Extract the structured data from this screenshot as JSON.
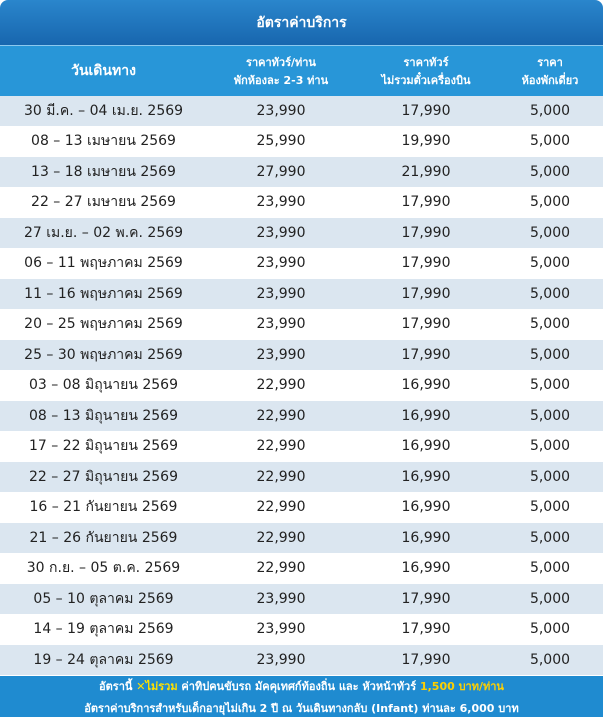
{
  "title": "อัตราค่าบริการ",
  "table": {
    "headers": [
      [
        "วันเดินทาง"
      ],
      [
        "ราคาทัวร์/ท่าน",
        "พักห้องละ 2-3 ท่าน"
      ],
      [
        "ราคาทัวร์",
        "ไม่รวมตั๋วเครื่องบิน"
      ],
      [
        "ราคา",
        "ห้องพักเดี่ยว"
      ]
    ],
    "rows": [
      [
        "30 มี.ค. – 04 เม.ย. 2569",
        "23,990",
        "17,990",
        "5,000"
      ],
      [
        "08 – 13 เมษายน 2569",
        "25,990",
        "19,990",
        "5,000"
      ],
      [
        "13 – 18 เมษายน 2569",
        "27,990",
        "21,990",
        "5,000"
      ],
      [
        "22 – 27 เมษายน 2569",
        "23,990",
        "17,990",
        "5,000"
      ],
      [
        "27 เม.ย. – 02 พ.ค. 2569",
        "23,990",
        "17,990",
        "5,000"
      ],
      [
        "06 – 11 พฤษภาคม 2569",
        "23,990",
        "17,990",
        "5,000"
      ],
      [
        "11 – 16 พฤษภาคม 2569",
        "23,990",
        "17,990",
        "5,000"
      ],
      [
        "20 – 25 พฤษภาคม 2569",
        "23,990",
        "17,990",
        "5,000"
      ],
      [
        "25 – 30 พฤษภาคม 2569",
        "23,990",
        "17,990",
        "5,000"
      ],
      [
        "03 – 08 มิถุนายน 2569",
        "22,990",
        "16,990",
        "5,000"
      ],
      [
        "08 – 13 มิถุนายน 2569",
        "22,990",
        "16,990",
        "5,000"
      ],
      [
        "17 – 22 มิถุนายน 2569",
        "22,990",
        "16,990",
        "5,000"
      ],
      [
        "22 – 27 มิถุนายน 2569",
        "22,990",
        "16,990",
        "5,000"
      ],
      [
        "16 – 21 กันยายน 2569",
        "22,990",
        "16,990",
        "5,000"
      ],
      [
        "21 – 26 กันยายน 2569",
        "22,990",
        "16,990",
        "5,000"
      ],
      [
        "30 ก.ย. – 05 ต.ค. 2569",
        "22,990",
        "16,990",
        "5,000"
      ],
      [
        "05 – 10 ตุลาคม 2569",
        "23,990",
        "17,990",
        "5,000"
      ],
      [
        "14 – 19 ตุลาคม 2569",
        "23,990",
        "17,990",
        "5,000"
      ],
      [
        "19 – 24 ตุลาคม 2569",
        "23,990",
        "17,990",
        "5,000"
      ]
    ]
  },
  "notes": [
    [
      "อัตรานี้",
      "✕",
      "ไม่รวม",
      "ค่าทิปคนขับรถ มัคคุเทศก์ท้องถิ่น และ หัวหน้าทัวร์",
      "1,500 บาท/ท่าน"
    ],
    [
      "อัตราค่าบริการสำหรับเด็กอายุไม่เกิน 2 ปี ณ วันเดินทางกลับ (Infant) ท่านละ 6,000 บาท"
    ]
  ]
}
